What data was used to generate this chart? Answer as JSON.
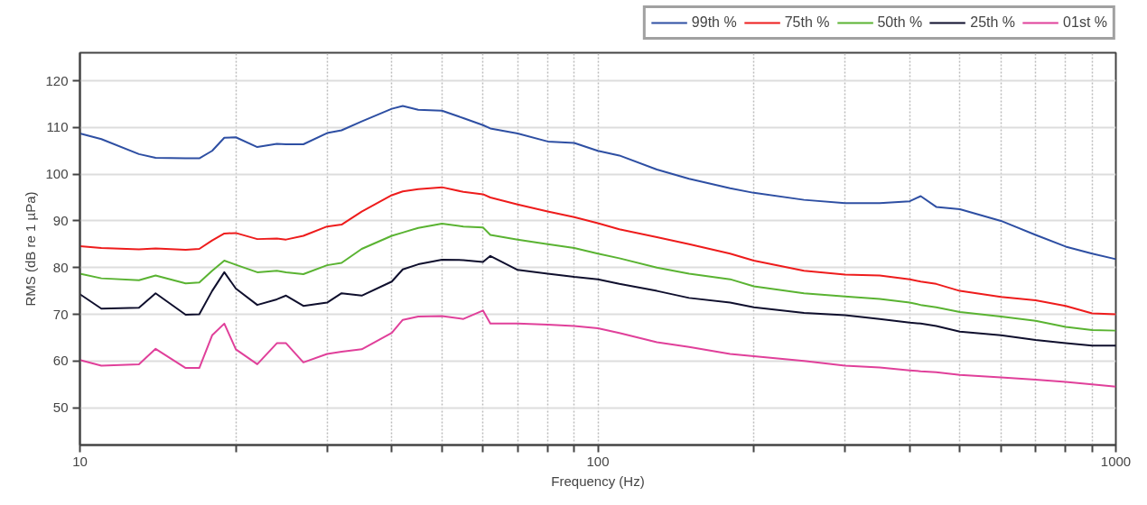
{
  "chart_data": {
    "type": "line",
    "xlabel": "Frequency (Hz)",
    "ylabel": "RMS (dB re 1 µPa)",
    "log": "x",
    "grid": true,
    "legend": "top right",
    "line_style": "solid",
    "marker": "none",
    "x": [
      10,
      11,
      13,
      14,
      16,
      17,
      18,
      19,
      20,
      22,
      24,
      25,
      27,
      30,
      32,
      35,
      40,
      42,
      45,
      50,
      55,
      60,
      62,
      70,
      80,
      90,
      100,
      110,
      130,
      150,
      180,
      200,
      250,
      300,
      350,
      400,
      420,
      450,
      500,
      600,
      700,
      800,
      900,
      1000
    ],
    "xlim": [
      10,
      1000
    ],
    "ylim": [
      42,
      126
    ],
    "xticks": [
      10,
      {
        "value": 20,
        "label": null
      },
      {
        "value": 30,
        "label": null
      },
      {
        "value": 40,
        "label": null
      },
      {
        "value": 50,
        "label": null
      },
      {
        "value": 60,
        "label": null
      },
      {
        "value": 70,
        "label": null
      },
      {
        "value": 80,
        "label": null
      },
      {
        "value": 90,
        "label": null
      },
      100,
      {
        "value": 200,
        "label": null
      },
      {
        "value": 300,
        "label": null
      },
      {
        "value": 400,
        "label": null
      },
      {
        "value": 500,
        "label": null
      },
      {
        "value": 600,
        "label": null
      },
      {
        "value": 700,
        "label": null
      },
      {
        "value": 800,
        "label": null
      },
      {
        "value": 900,
        "label": null
      },
      1000
    ],
    "yticks": [
      50,
      60,
      70,
      80,
      90,
      100,
      110,
      120
    ],
    "series": [
      {
        "name": "99th %",
        "color": "#2e4fa3",
        "values": [
          108.7,
          107.5,
          104.3,
          103.5,
          103.4,
          103.4,
          105,
          107.8,
          107.9,
          105.8,
          106.5,
          106.4,
          106.4,
          108.8,
          109.4,
          111.3,
          114,
          114.6,
          113.8,
          113.6,
          112,
          110.5,
          109.8,
          108.7,
          107,
          106.7,
          105,
          104,
          101,
          99,
          97,
          96,
          94.5,
          93.8,
          93.8,
          94.2,
          95.3,
          93,
          92.5,
          90,
          87,
          84.5,
          83,
          81.8
        ]
      },
      {
        "name": "75th %",
        "color": "#ee1c1c",
        "values": [
          84.6,
          84.2,
          83.9,
          84.1,
          83.8,
          84,
          85.8,
          87.3,
          87.4,
          86.1,
          86.2,
          86,
          86.8,
          88.8,
          89.2,
          92,
          95.5,
          96.3,
          96.8,
          97.2,
          96.2,
          95.7,
          95,
          93.5,
          92,
          90.8,
          89.5,
          88.2,
          86.5,
          85,
          83,
          81.5,
          79.3,
          78.5,
          78.3,
          77.5,
          77,
          76.5,
          75,
          73.7,
          73,
          71.8,
          70.2,
          70
        ]
      },
      {
        "name": "50th %",
        "color": "#5ab332",
        "values": [
          78.7,
          77.7,
          77.3,
          78.3,
          76.6,
          76.8,
          79.3,
          81.5,
          80.6,
          79,
          79.3,
          79,
          78.6,
          80.5,
          81,
          84,
          86.8,
          87.5,
          88.5,
          89.4,
          88.8,
          88.6,
          87,
          86,
          85,
          84.2,
          83,
          82,
          80,
          78.7,
          77.5,
          76,
          74.5,
          73.8,
          73.3,
          72.5,
          72,
          71.5,
          70.5,
          69.5,
          68.6,
          67.3,
          66.6,
          66.5
        ]
      },
      {
        "name": "25th %",
        "color": "#0f0f2d",
        "values": [
          74.3,
          71.2,
          71.4,
          74.5,
          69.9,
          70,
          75,
          79,
          75.5,
          72,
          73.2,
          74,
          71.8,
          72.5,
          74.5,
          74,
          77,
          79.6,
          80.7,
          81.7,
          81.6,
          81.2,
          82.5,
          79.5,
          78.7,
          78,
          77.5,
          76.5,
          75,
          73.5,
          72.5,
          71.5,
          70.3,
          69.8,
          69,
          68.2,
          68,
          67.5,
          66.3,
          65.5,
          64.5,
          63.8,
          63.3,
          63.3
        ]
      },
      {
        "name": "01st %",
        "color": "#e0409a",
        "values": [
          60.2,
          59,
          59.3,
          62.6,
          58.5,
          58.5,
          65.5,
          68,
          62.5,
          59.3,
          63.8,
          63.8,
          59.7,
          61.5,
          62,
          62.5,
          66,
          68.8,
          69.5,
          69.6,
          69,
          70.8,
          68,
          68,
          67.8,
          67.5,
          67,
          66,
          64,
          63,
          61.5,
          61,
          60,
          59,
          58.6,
          58,
          57.8,
          57.6,
          57,
          56.5,
          56,
          55.5,
          55,
          54.5
        ]
      }
    ]
  }
}
